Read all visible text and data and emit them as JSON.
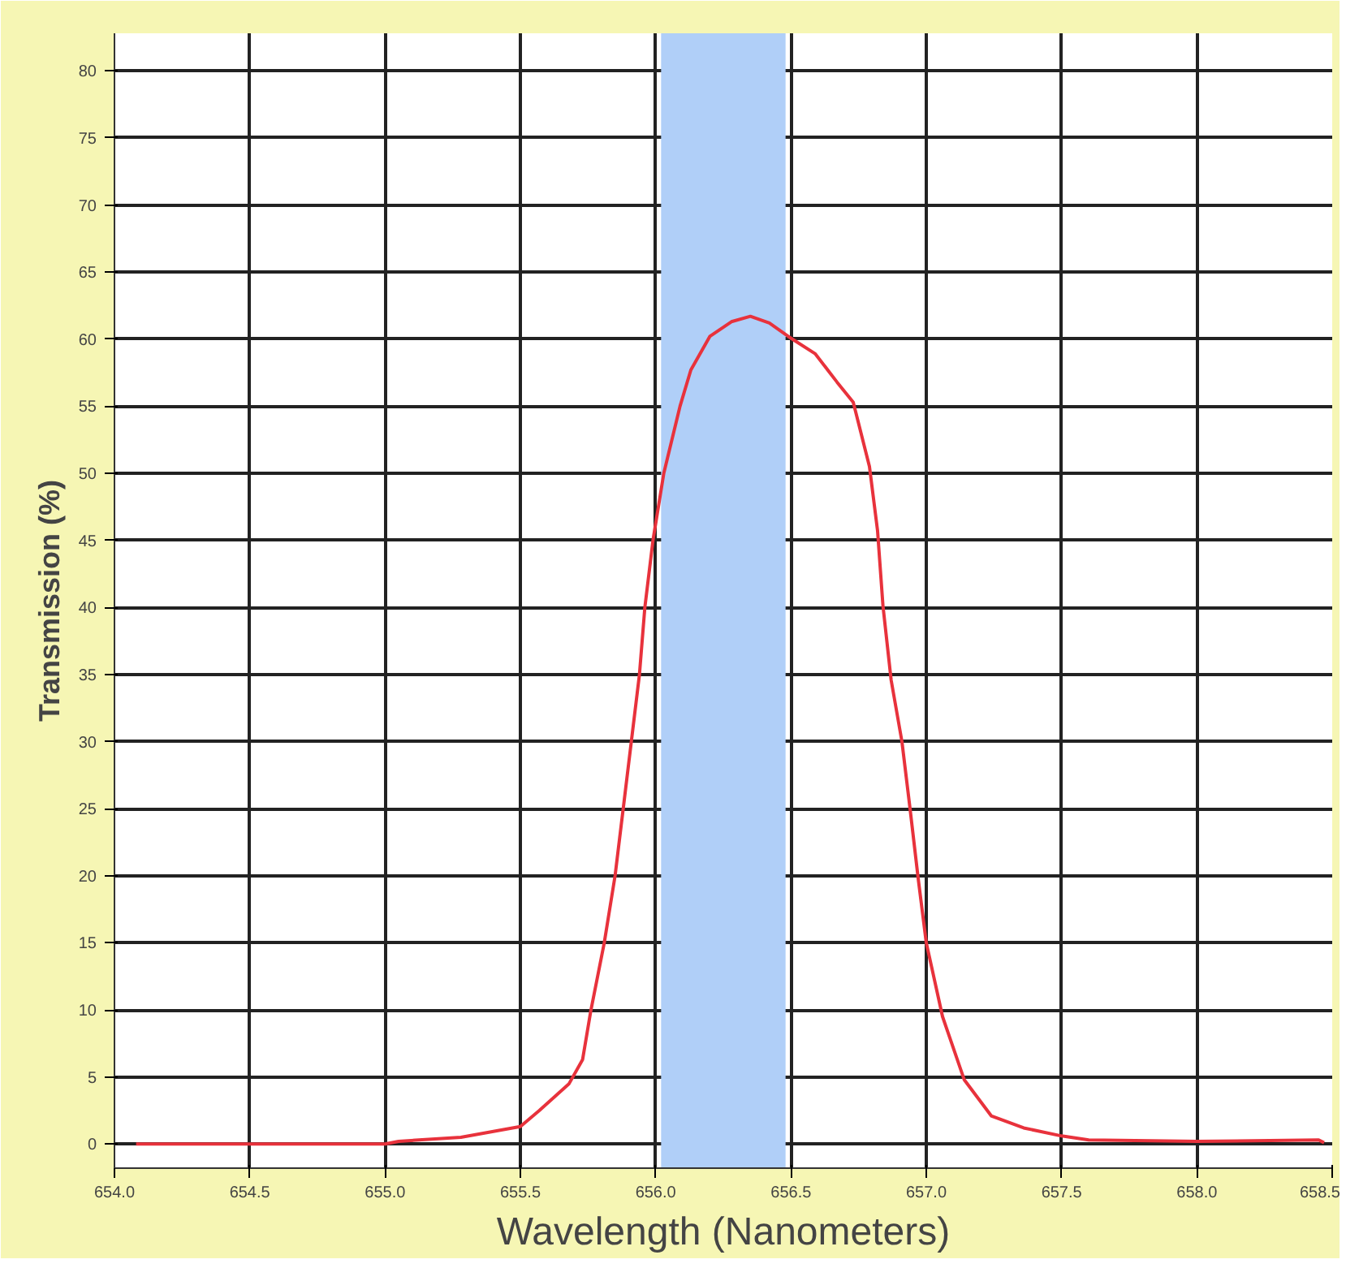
{
  "chart_data": {
    "type": "line",
    "xlabel": "Wavelength (Nanometers)",
    "ylabel": "Transmission (%)",
    "x": [
      654.08,
      654.5,
      655.0,
      655.05,
      655.28,
      655.5,
      655.57,
      655.68,
      655.73,
      655.76,
      655.81,
      655.85,
      655.88,
      655.91,
      655.94,
      655.96,
      655.99,
      656.03,
      656.09,
      656.13,
      656.2,
      656.28,
      656.35,
      656.42,
      656.49,
      656.59,
      656.67,
      656.73,
      656.79,
      656.82,
      656.84,
      656.87,
      656.91,
      656.94,
      656.97,
      657.0,
      657.06,
      657.14,
      657.24,
      657.36,
      657.5,
      657.6,
      658.0,
      658.45,
      658.47
    ],
    "series": [
      {
        "color": "#e8323c",
        "values": [
          0,
          0,
          0,
          0.2,
          0.5,
          1.3,
          2.5,
          4.5,
          6.3,
          9.9,
          15,
          20,
          25,
          30,
          35,
          40,
          45,
          50,
          55,
          57.7,
          60.2,
          61.3,
          61.7,
          61.2,
          60.2,
          58.9,
          56.8,
          55.3,
          50.5,
          45.7,
          40.1,
          34.6,
          30,
          25,
          19.8,
          15,
          9.5,
          4.8,
          2.1,
          1.2,
          0.6,
          0.3,
          0.2,
          0.3,
          0.1
        ]
      }
    ],
    "xlim": [
      654.0,
      658.5
    ],
    "ylim": [
      -1.8,
      82.8
    ],
    "xticks": [
      {
        "value": 654.0,
        "label": "654.0"
      },
      {
        "value": 654.5,
        "label": "654.5"
      },
      {
        "value": 655.0,
        "label": "655.0"
      },
      {
        "value": 655.5,
        "label": "655.5"
      },
      {
        "value": 656.0,
        "label": "656.0"
      },
      {
        "value": 656.5,
        "label": "656.5"
      },
      {
        "value": 657.0,
        "label": "657.0"
      },
      {
        "value": 657.5,
        "label": "657.5"
      },
      {
        "value": 658.0,
        "label": "658.0"
      },
      {
        "value": 658.5,
        "label": "658.5"
      }
    ],
    "yticks": [
      0,
      5,
      10,
      15,
      20,
      25,
      30,
      35,
      40,
      45,
      50,
      55,
      60,
      65,
      70,
      75,
      80
    ],
    "bands": [
      {
        "axis": "x",
        "from": 656.02,
        "to": 656.48,
        "color": "#b0cff8"
      }
    ],
    "grid": true,
    "marker": "none",
    "line_style": "solid"
  }
}
